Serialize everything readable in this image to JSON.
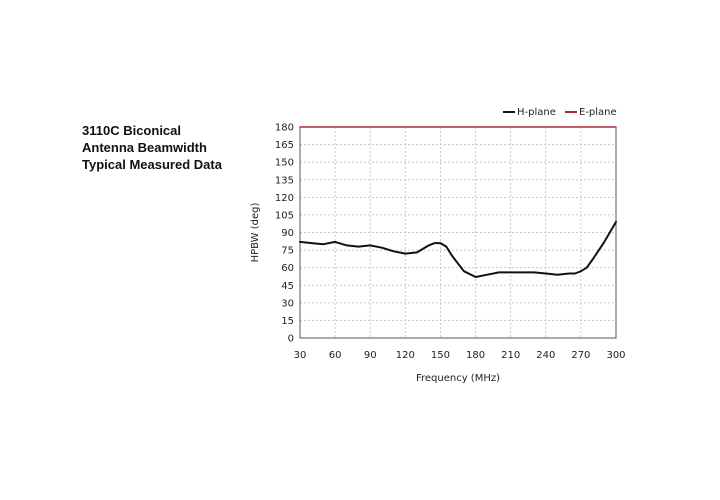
{
  "side_title": {
    "line1": "3110C Biconical",
    "line2": "Antenna Beamwidth",
    "line3": "Typical Measured Data"
  },
  "chart_data": {
    "type": "line",
    "xlabel": "Frequency (MHz)",
    "ylabel": "HPBW (deg)",
    "xlim": [
      30,
      300
    ],
    "ylim": [
      0,
      180
    ],
    "xticks": [
      30,
      60,
      90,
      120,
      150,
      180,
      210,
      240,
      270,
      300
    ],
    "yticks": [
      0,
      15,
      30,
      45,
      60,
      75,
      90,
      105,
      120,
      135,
      150,
      165,
      180
    ],
    "grid": true,
    "legend_position": "top-right",
    "series": [
      {
        "name": "H-plane",
        "color": "#111111",
        "x": [
          30,
          40,
          50,
          60,
          70,
          80,
          90,
          100,
          110,
          120,
          130,
          140,
          145,
          150,
          155,
          160,
          170,
          180,
          190,
          200,
          210,
          220,
          230,
          240,
          250,
          260,
          265,
          270,
          275,
          280,
          290,
          300
        ],
        "y": [
          82,
          81,
          80,
          82,
          79,
          78,
          79,
          77,
          74,
          72,
          73,
          79,
          81,
          81,
          78,
          70,
          57,
          52,
          54,
          56,
          56,
          56,
          56,
          55,
          54,
          55,
          55,
          57,
          60,
          67,
          82,
          99
        ]
      },
      {
        "name": "E-plane",
        "color": "#b0283a",
        "x": [
          30,
          300
        ],
        "y": [
          180,
          180
        ]
      }
    ]
  }
}
